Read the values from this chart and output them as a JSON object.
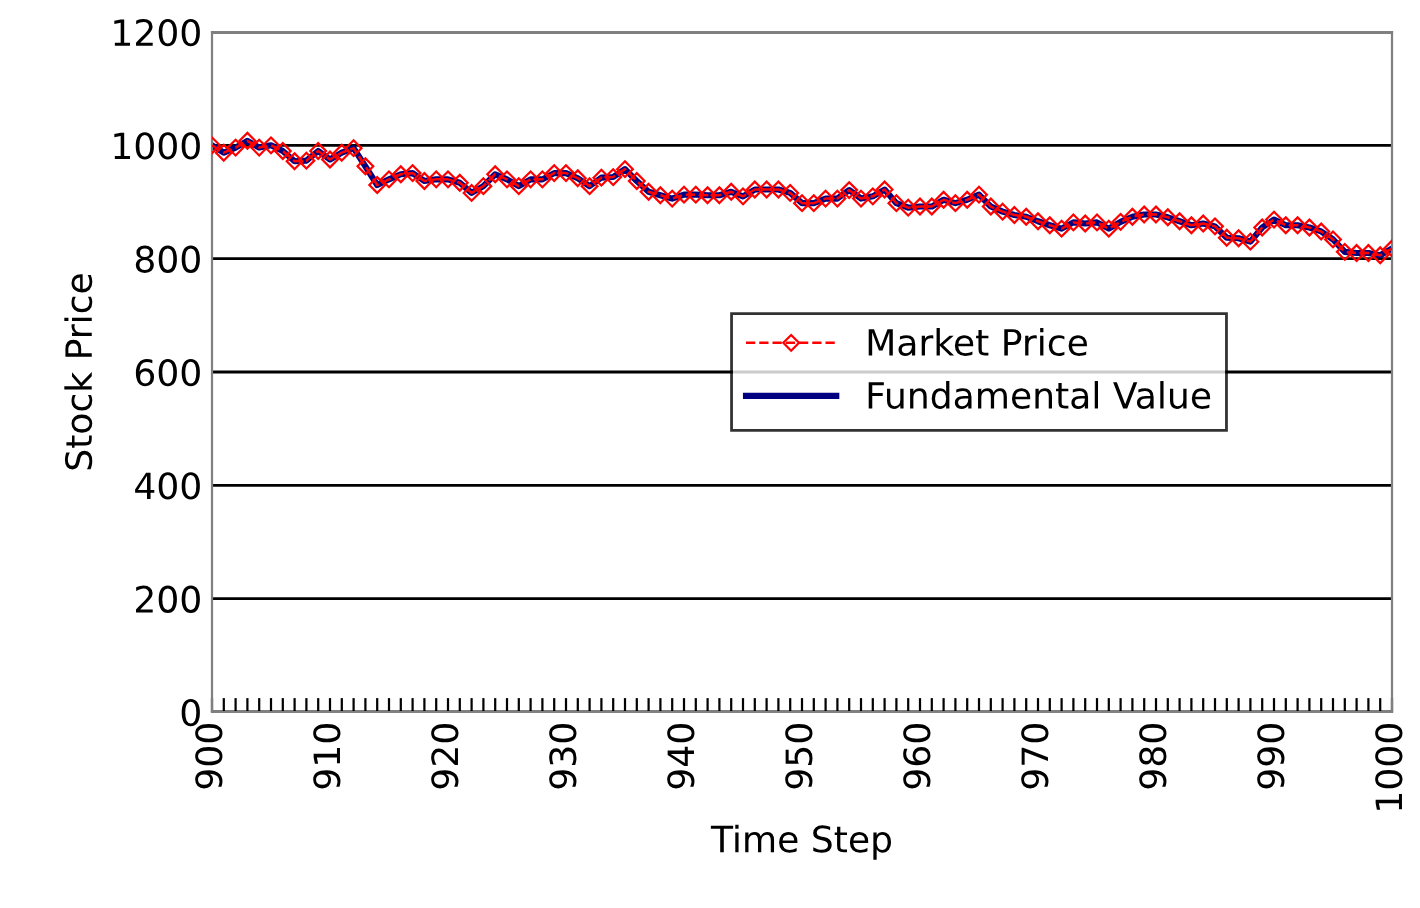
{
  "chart_data": {
    "type": "line",
    "xlabel": "Time Step",
    "ylabel": "Stock Price",
    "x": [
      900,
      901,
      902,
      903,
      904,
      905,
      906,
      907,
      908,
      909,
      910,
      911,
      912,
      913,
      914,
      915,
      916,
      917,
      918,
      919,
      920,
      921,
      922,
      923,
      924,
      925,
      926,
      927,
      928,
      929,
      930,
      931,
      932,
      933,
      934,
      935,
      936,
      937,
      938,
      939,
      940,
      941,
      942,
      943,
      944,
      945,
      946,
      947,
      948,
      949,
      950,
      951,
      952,
      953,
      954,
      955,
      956,
      957,
      958,
      959,
      960,
      961,
      962,
      963,
      964,
      965,
      966,
      967,
      968,
      969,
      970,
      971,
      972,
      973,
      974,
      975,
      976,
      977,
      978,
      979,
      980,
      981,
      982,
      983,
      984,
      985,
      986,
      987,
      988,
      989,
      990,
      991,
      992,
      993,
      994,
      995,
      996,
      997,
      998,
      999,
      1000
    ],
    "series": [
      {
        "name": "Market Price",
        "color": "#ff0000",
        "line_style": "dashed",
        "marker": "diamond",
        "values": [
          1000,
          987,
          996,
          1008,
          996,
          1000,
          990,
          972,
          973,
          990,
          975,
          987,
          995,
          963,
          930,
          940,
          949,
          951,
          937,
          940,
          940,
          934,
          916,
          928,
          949,
          940,
          928,
          940,
          940,
          951,
          951,
          942,
          928,
          943,
          944,
          958,
          937,
          918,
          912,
          906,
          913,
          913,
          912,
          912,
          918,
          910,
          922,
          922,
          922,
          916,
          898,
          898,
          906,
          906,
          921,
          906,
          910,
          922,
          898,
          890,
          892,
          892,
          904,
          898,
          904,
          913,
          892,
          883,
          877,
          874,
          866,
          859,
          853,
          864,
          862,
          864,
          853,
          865,
          874,
          878,
          878,
          873,
          866,
          859,
          862,
          857,
          837,
          836,
          830,
          855,
          869,
          859,
          859,
          855,
          848,
          834,
          812,
          810,
          810,
          806,
          818
        ]
      },
      {
        "name": "Fundamental Value",
        "color": "#000080",
        "line_style": "solid",
        "marker": "none",
        "values": [
          1000,
          987,
          996,
          1008,
          996,
          1000,
          990,
          972,
          973,
          990,
          975,
          987,
          995,
          963,
          930,
          940,
          949,
          951,
          937,
          940,
          940,
          934,
          916,
          928,
          949,
          940,
          928,
          940,
          940,
          951,
          951,
          942,
          928,
          943,
          944,
          958,
          937,
          918,
          912,
          906,
          913,
          913,
          912,
          912,
          918,
          910,
          922,
          922,
          922,
          916,
          898,
          898,
          906,
          906,
          921,
          906,
          910,
          922,
          898,
          890,
          892,
          892,
          904,
          898,
          904,
          913,
          892,
          883,
          877,
          874,
          866,
          859,
          853,
          864,
          862,
          864,
          853,
          865,
          874,
          878,
          878,
          873,
          866,
          859,
          862,
          857,
          837,
          836,
          830,
          855,
          869,
          859,
          859,
          855,
          848,
          834,
          812,
          810,
          810,
          806,
          818
        ]
      }
    ],
    "xlim": [
      900,
      1000
    ],
    "xticks": [
      900,
      {
        "value": 901,
        "label": null
      },
      {
        "value": 902,
        "label": null
      },
      {
        "value": 903,
        "label": null
      },
      {
        "value": 904,
        "label": null
      },
      {
        "value": 905,
        "label": null
      },
      {
        "value": 906,
        "label": null
      },
      {
        "value": 907,
        "label": null
      },
      {
        "value": 908,
        "label": null
      },
      {
        "value": 909,
        "label": null
      },
      910,
      {
        "value": 911,
        "label": null
      },
      {
        "value": 912,
        "label": null
      },
      {
        "value": 913,
        "label": null
      },
      {
        "value": 914,
        "label": null
      },
      {
        "value": 915,
        "label": null
      },
      {
        "value": 916,
        "label": null
      },
      {
        "value": 917,
        "label": null
      },
      {
        "value": 918,
        "label": null
      },
      {
        "value": 919,
        "label": null
      },
      920,
      {
        "value": 921,
        "label": null
      },
      {
        "value": 922,
        "label": null
      },
      {
        "value": 923,
        "label": null
      },
      {
        "value": 924,
        "label": null
      },
      {
        "value": 925,
        "label": null
      },
      {
        "value": 926,
        "label": null
      },
      {
        "value": 927,
        "label": null
      },
      {
        "value": 928,
        "label": null
      },
      {
        "value": 929,
        "label": null
      },
      930,
      {
        "value": 931,
        "label": null
      },
      {
        "value": 932,
        "label": null
      },
      {
        "value": 933,
        "label": null
      },
      {
        "value": 934,
        "label": null
      },
      {
        "value": 935,
        "label": null
      },
      {
        "value": 936,
        "label": null
      },
      {
        "value": 937,
        "label": null
      },
      {
        "value": 938,
        "label": null
      },
      {
        "value": 939,
        "label": null
      },
      940,
      {
        "value": 941,
        "label": null
      },
      {
        "value": 942,
        "label": null
      },
      {
        "value": 943,
        "label": null
      },
      {
        "value": 944,
        "label": null
      },
      {
        "value": 945,
        "label": null
      },
      {
        "value": 946,
        "label": null
      },
      {
        "value": 947,
        "label": null
      },
      {
        "value": 948,
        "label": null
      },
      {
        "value": 949,
        "label": null
      },
      950,
      {
        "value": 951,
        "label": null
      },
      {
        "value": 952,
        "label": null
      },
      {
        "value": 953,
        "label": null
      },
      {
        "value": 954,
        "label": null
      },
      {
        "value": 955,
        "label": null
      },
      {
        "value": 956,
        "label": null
      },
      {
        "value": 957,
        "label": null
      },
      {
        "value": 958,
        "label": null
      },
      {
        "value": 959,
        "label": null
      },
      960,
      {
        "value": 961,
        "label": null
      },
      {
        "value": 962,
        "label": null
      },
      {
        "value": 963,
        "label": null
      },
      {
        "value": 964,
        "label": null
      },
      {
        "value": 965,
        "label": null
      },
      {
        "value": 966,
        "label": null
      },
      {
        "value": 967,
        "label": null
      },
      {
        "value": 968,
        "label": null
      },
      {
        "value": 969,
        "label": null
      },
      970,
      {
        "value": 971,
        "label": null
      },
      {
        "value": 972,
        "label": null
      },
      {
        "value": 973,
        "label": null
      },
      {
        "value": 974,
        "label": null
      },
      {
        "value": 975,
        "label": null
      },
      {
        "value": 976,
        "label": null
      },
      {
        "value": 977,
        "label": null
      },
      {
        "value": 978,
        "label": null
      },
      {
        "value": 979,
        "label": null
      },
      980,
      {
        "value": 981,
        "label": null
      },
      {
        "value": 982,
        "label": null
      },
      {
        "value": 983,
        "label": null
      },
      {
        "value": 984,
        "label": null
      },
      {
        "value": 985,
        "label": null
      },
      {
        "value": 986,
        "label": null
      },
      {
        "value": 987,
        "label": null
      },
      {
        "value": 988,
        "label": null
      },
      {
        "value": 989,
        "label": null
      },
      990,
      {
        "value": 991,
        "label": null
      },
      {
        "value": 992,
        "label": null
      },
      {
        "value": 993,
        "label": null
      },
      {
        "value": 994,
        "label": null
      },
      {
        "value": 995,
        "label": null
      },
      {
        "value": 996,
        "label": null
      },
      {
        "value": 997,
        "label": null
      },
      {
        "value": 998,
        "label": null
      },
      {
        "value": 999,
        "label": null
      },
      1000
    ],
    "ylim": [
      0,
      1200
    ],
    "yticks": [
      0,
      200,
      400,
      600,
      800,
      1000,
      1200
    ],
    "grid": "y",
    "legend": "center right"
  }
}
